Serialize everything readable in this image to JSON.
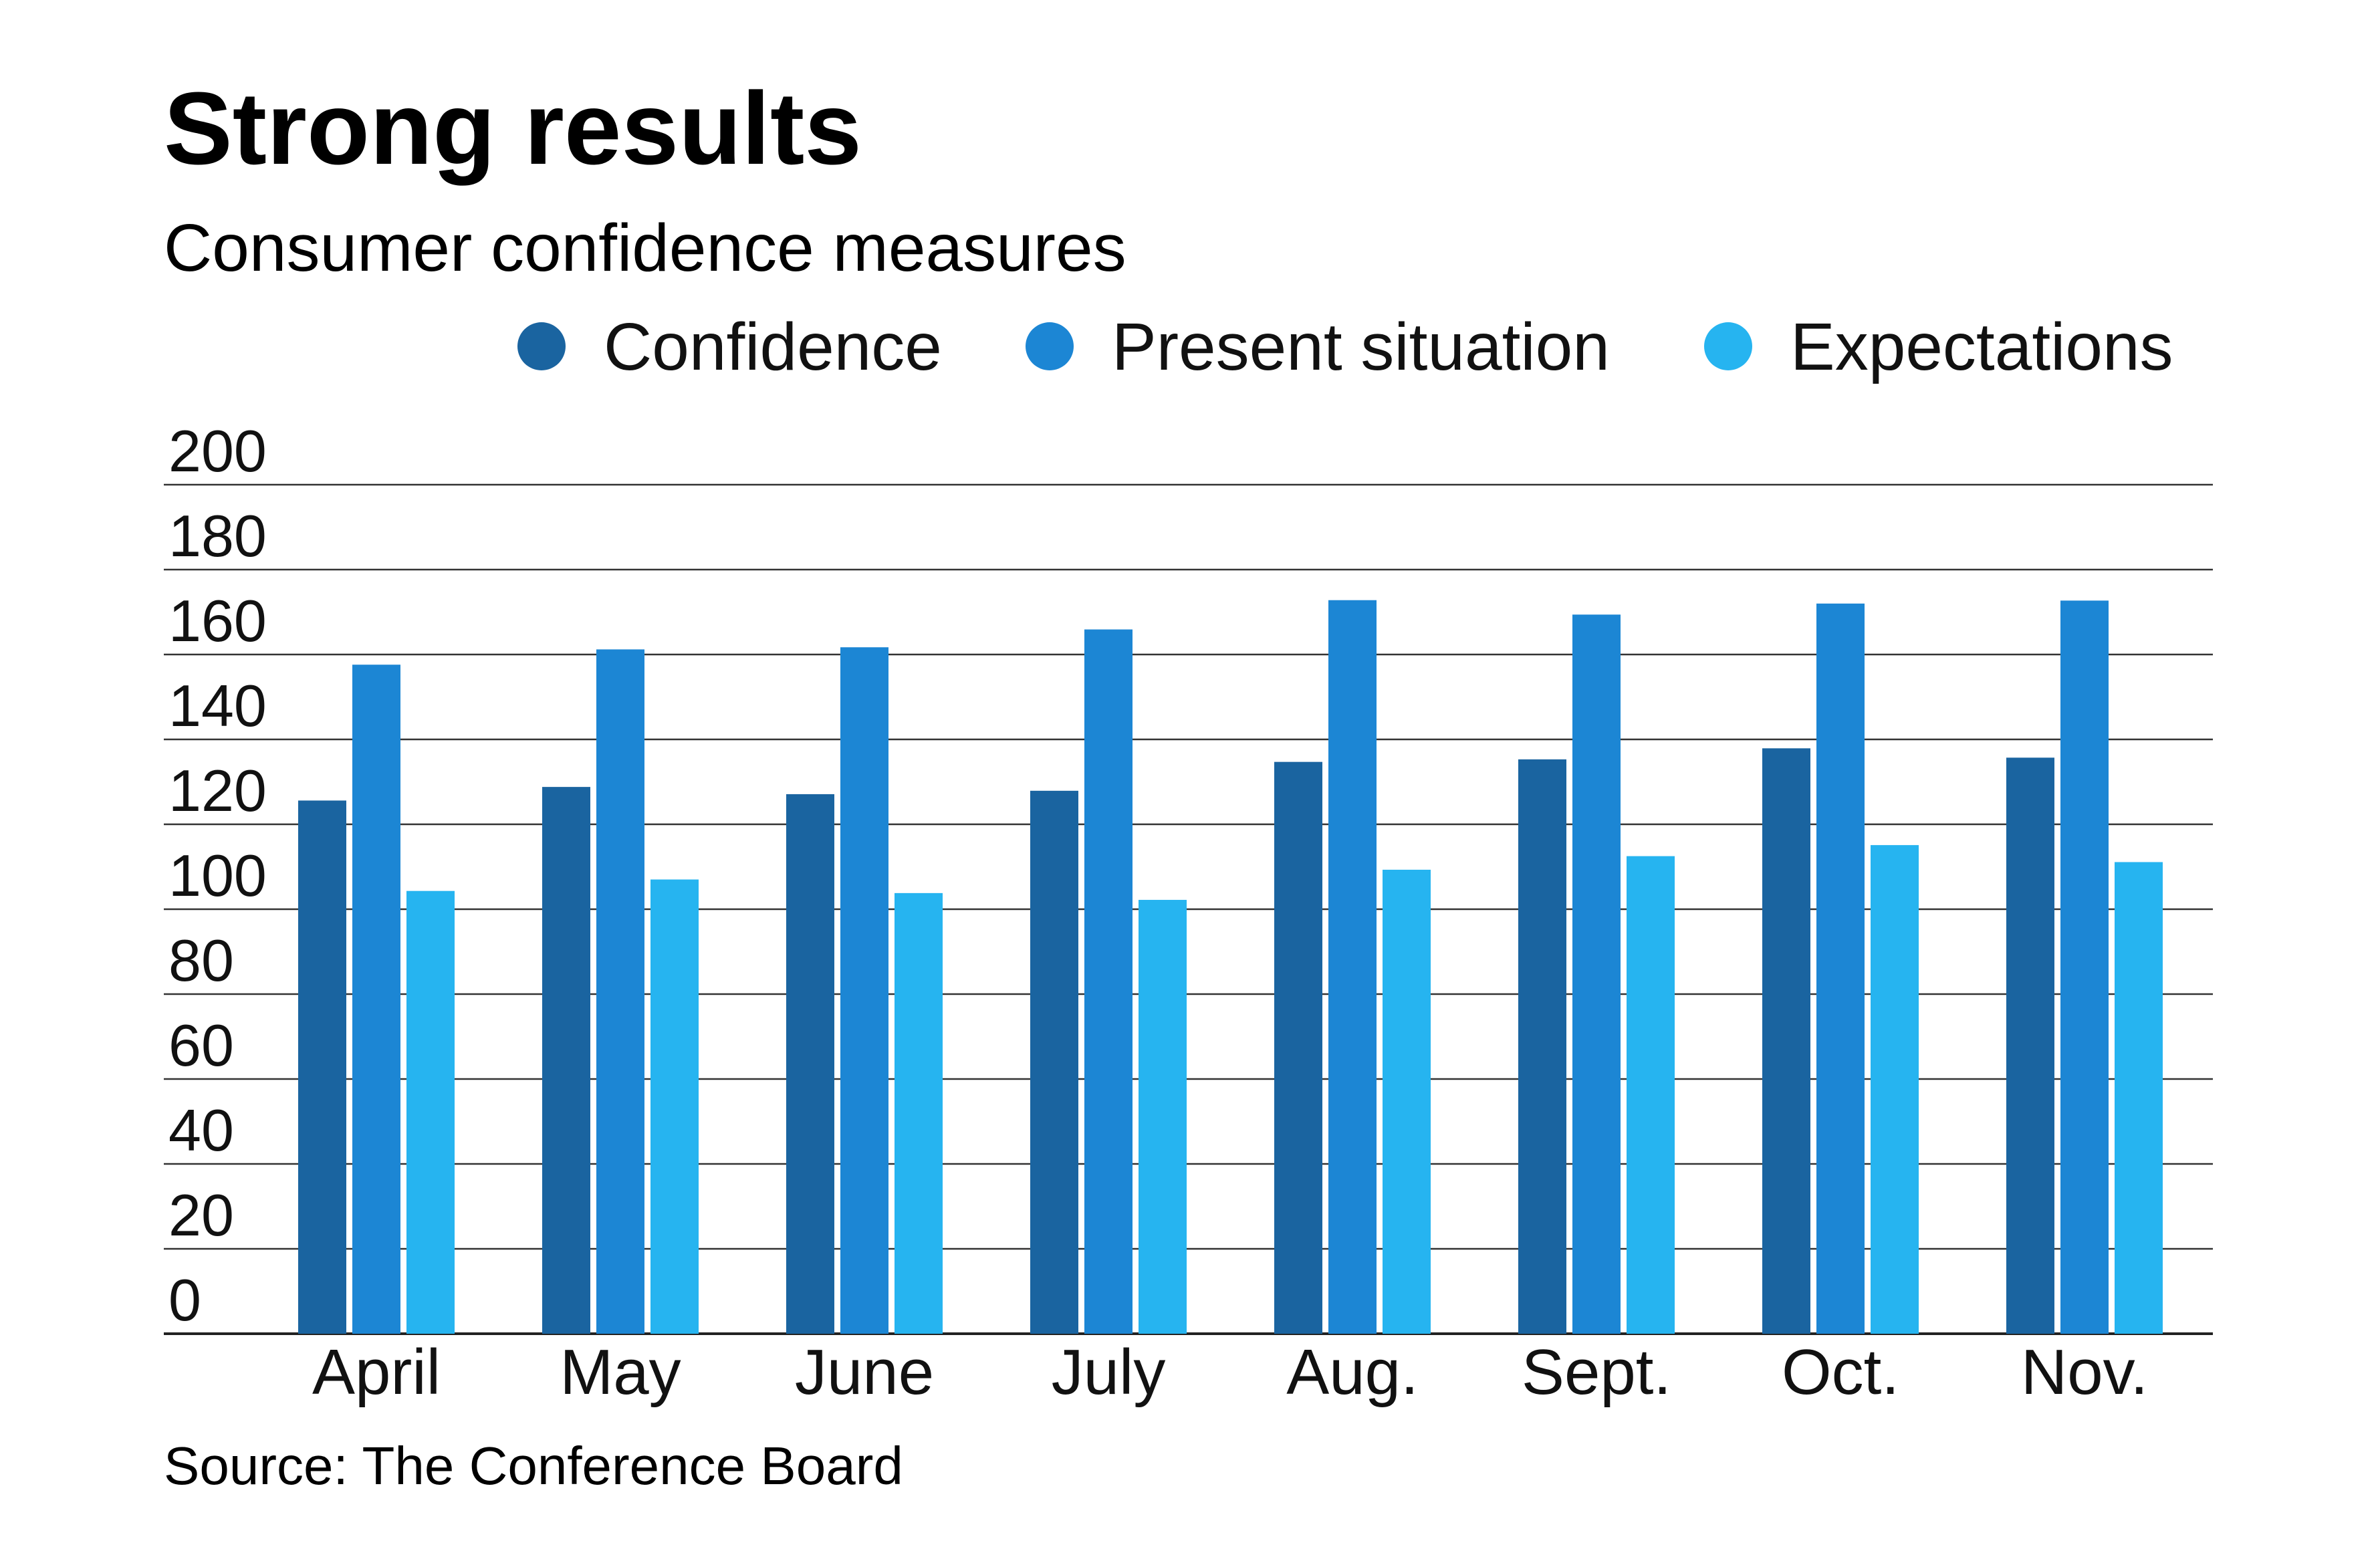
{
  "chart_data": {
    "type": "bar",
    "title": "Strong results",
    "subtitle": "Consumer confidence measures",
    "source": "Source: The Conference Board",
    "xlabel": "",
    "ylabel": "",
    "ylim": [
      0,
      200
    ],
    "yticks": [
      0,
      20,
      40,
      60,
      80,
      100,
      120,
      140,
      160,
      180,
      200
    ],
    "grid": true,
    "legend_position": "top-right",
    "categories": [
      "April",
      "May",
      "June",
      "July",
      "Aug.",
      "Sept.",
      "Oct.",
      "Nov."
    ],
    "series": [
      {
        "name": "Confidence",
        "color": "#1A64A0",
        "values": [
          125.6,
          128.8,
          127.1,
          127.9,
          134.7,
          135.3,
          137.9,
          135.7
        ]
      },
      {
        "name": "Present situation",
        "color": "#1C86D4",
        "values": [
          157.6,
          161.2,
          161.7,
          165.9,
          172.8,
          169.4,
          172.0,
          172.7
        ]
      },
      {
        "name": "Expectations",
        "color": "#26B4F0",
        "values": [
          104.3,
          107.0,
          103.8,
          102.2,
          109.3,
          112.5,
          115.1,
          111.1
        ]
      }
    ]
  }
}
